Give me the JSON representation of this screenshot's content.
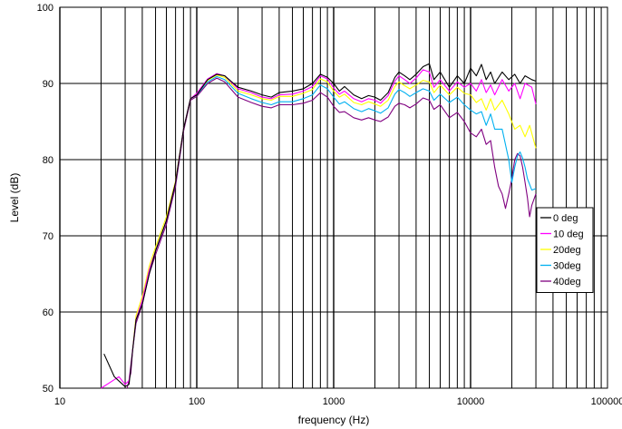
{
  "chart_data": {
    "type": "line",
    "title": "",
    "xlabel": "frequency (Hz)",
    "ylabel": "Level (dB)",
    "x_scale": "log",
    "xlim": [
      10,
      100000
    ],
    "ylim": [
      50,
      100
    ],
    "x_tick_labels": [
      "10",
      "100",
      "1000",
      "10000",
      "100000"
    ],
    "y_tick_labels": [
      "50",
      "60",
      "70",
      "80",
      "90",
      "100"
    ],
    "grid": true,
    "legend_position": "right",
    "series": [
      {
        "name": "0 deg",
        "color": "#000000",
        "points": [
          [
            21,
            54.5
          ],
          [
            25,
            51.5
          ],
          [
            30,
            50.2
          ],
          [
            32,
            50.5
          ],
          [
            34,
            55
          ],
          [
            36,
            59
          ],
          [
            40,
            61
          ],
          [
            45,
            65
          ],
          [
            50,
            68
          ],
          [
            60,
            72
          ],
          [
            70,
            77
          ],
          [
            80,
            84
          ],
          [
            90,
            88
          ],
          [
            100,
            88.5
          ],
          [
            120,
            90.5
          ],
          [
            140,
            91.2
          ],
          [
            160,
            91
          ],
          [
            200,
            89.5
          ],
          [
            250,
            89
          ],
          [
            300,
            88.5
          ],
          [
            350,
            88.2
          ],
          [
            400,
            88.8
          ],
          [
            500,
            89
          ],
          [
            600,
            89.3
          ],
          [
            700,
            90
          ],
          [
            800,
            91.2
          ],
          [
            900,
            90.8
          ],
          [
            1000,
            90
          ],
          [
            1100,
            89
          ],
          [
            1200,
            89.6
          ],
          [
            1400,
            88.5
          ],
          [
            1600,
            88
          ],
          [
            1800,
            88.4
          ],
          [
            2000,
            88.2
          ],
          [
            2200,
            87.8
          ],
          [
            2500,
            88.8
          ],
          [
            2800,
            90.8
          ],
          [
            3000,
            91.5
          ],
          [
            3300,
            91
          ],
          [
            3600,
            90.5
          ],
          [
            4000,
            91.2
          ],
          [
            4500,
            92.2
          ],
          [
            5000,
            92.6
          ],
          [
            5400,
            90.5
          ],
          [
            6000,
            91.5
          ],
          [
            7000,
            89.5
          ],
          [
            8000,
            91
          ],
          [
            9000,
            90
          ],
          [
            10000,
            92
          ],
          [
            11000,
            91
          ],
          [
            12000,
            92.5
          ],
          [
            13000,
            90.5
          ],
          [
            14000,
            91.5
          ],
          [
            15000,
            90
          ],
          [
            17000,
            91.5
          ],
          [
            19000,
            90.5
          ],
          [
            21000,
            91.2
          ],
          [
            23000,
            90
          ],
          [
            25000,
            91
          ],
          [
            28000,
            90.5
          ],
          [
            30000,
            90.3
          ]
        ]
      },
      {
        "name": "10 deg",
        "color": "#ff00ff",
        "points": [
          [
            20,
            50
          ],
          [
            27,
            51.5
          ],
          [
            30,
            50.5
          ],
          [
            32,
            51
          ],
          [
            34,
            55
          ],
          [
            36,
            59
          ],
          [
            40,
            61.5
          ],
          [
            45,
            65.5
          ],
          [
            50,
            68
          ],
          [
            60,
            72
          ],
          [
            70,
            77
          ],
          [
            80,
            84
          ],
          [
            90,
            88
          ],
          [
            100,
            88.7
          ],
          [
            120,
            90.6
          ],
          [
            140,
            91.3
          ],
          [
            160,
            91
          ],
          [
            200,
            89.3
          ],
          [
            250,
            88.8
          ],
          [
            300,
            88.2
          ],
          [
            350,
            88
          ],
          [
            400,
            88.5
          ],
          [
            500,
            88.6
          ],
          [
            600,
            89
          ],
          [
            700,
            89.6
          ],
          [
            800,
            91
          ],
          [
            900,
            90.6
          ],
          [
            1000,
            89.4
          ],
          [
            1100,
            88.6
          ],
          [
            1200,
            89
          ],
          [
            1400,
            88
          ],
          [
            1600,
            87.6
          ],
          [
            1800,
            88
          ],
          [
            2000,
            87.8
          ],
          [
            2200,
            87.4
          ],
          [
            2500,
            88.4
          ],
          [
            2800,
            90.3
          ],
          [
            3000,
            91
          ],
          [
            3300,
            90.5
          ],
          [
            3600,
            90
          ],
          [
            4000,
            90.7
          ],
          [
            4500,
            91.8
          ],
          [
            5000,
            91.5
          ],
          [
            5400,
            89.5
          ],
          [
            6000,
            90.5
          ],
          [
            7000,
            89
          ],
          [
            8000,
            90.2
          ],
          [
            9000,
            89.5
          ],
          [
            10000,
            90
          ],
          [
            11000,
            89
          ],
          [
            12000,
            90.5
          ],
          [
            13000,
            88.8
          ],
          [
            14000,
            89.8
          ],
          [
            15000,
            88.5
          ],
          [
            17000,
            90.5
          ],
          [
            19000,
            89
          ],
          [
            21000,
            90
          ],
          [
            23000,
            88
          ],
          [
            25000,
            90
          ],
          [
            28000,
            89.5
          ],
          [
            30000,
            87.3
          ]
        ]
      },
      {
        "name": "20deg",
        "color": "#ffff00",
        "points": [
          [
            34,
            55
          ],
          [
            36,
            59.5
          ],
          [
            40,
            62
          ],
          [
            45,
            66
          ],
          [
            50,
            68.5
          ],
          [
            60,
            72.5
          ],
          [
            70,
            77.2
          ],
          [
            80,
            84
          ],
          [
            90,
            88
          ],
          [
            100,
            88.6
          ],
          [
            120,
            90.4
          ],
          [
            140,
            91.1
          ],
          [
            160,
            90.8
          ],
          [
            200,
            89
          ],
          [
            250,
            88.5
          ],
          [
            300,
            88
          ],
          [
            350,
            87.8
          ],
          [
            400,
            88.3
          ],
          [
            500,
            88.3
          ],
          [
            600,
            88.7
          ],
          [
            700,
            89.2
          ],
          [
            800,
            90.6
          ],
          [
            900,
            90.2
          ],
          [
            1000,
            89
          ],
          [
            1100,
            88.2
          ],
          [
            1200,
            88.6
          ],
          [
            1400,
            87.5
          ],
          [
            1600,
            87.2
          ],
          [
            1800,
            87.6
          ],
          [
            2000,
            87.3
          ],
          [
            2200,
            87
          ],
          [
            2500,
            87.8
          ],
          [
            2800,
            89.6
          ],
          [
            3000,
            90.2
          ],
          [
            3300,
            89.7
          ],
          [
            3600,
            89.3
          ],
          [
            4000,
            89.8
          ],
          [
            4500,
            90.4
          ],
          [
            5000,
            90.2
          ],
          [
            5400,
            88.8
          ],
          [
            6000,
            89.8
          ],
          [
            7000,
            88.5
          ],
          [
            8000,
            89.5
          ],
          [
            9000,
            88.7
          ],
          [
            10000,
            88.5
          ],
          [
            11000,
            87.5
          ],
          [
            12000,
            88
          ],
          [
            13000,
            86.5
          ],
          [
            14000,
            88
          ],
          [
            15000,
            86.5
          ],
          [
            17000,
            87.8
          ],
          [
            19000,
            86
          ],
          [
            21000,
            84
          ],
          [
            23000,
            84.5
          ],
          [
            25000,
            83
          ],
          [
            27000,
            84.5
          ],
          [
            30000,
            81.5
          ]
        ]
      },
      {
        "name": "30deg",
        "color": "#00b0f0",
        "points": [
          [
            34,
            55
          ],
          [
            36,
            59
          ],
          [
            40,
            61.5
          ],
          [
            45,
            65.5
          ],
          [
            50,
            68
          ],
          [
            60,
            72
          ],
          [
            70,
            77
          ],
          [
            80,
            84
          ],
          [
            90,
            88
          ],
          [
            100,
            88.5
          ],
          [
            120,
            90.2
          ],
          [
            140,
            90.9
          ],
          [
            160,
            90.5
          ],
          [
            200,
            88.7
          ],
          [
            250,
            88
          ],
          [
            300,
            87.5
          ],
          [
            350,
            87.2
          ],
          [
            400,
            87.6
          ],
          [
            500,
            87.6
          ],
          [
            600,
            88
          ],
          [
            700,
            88.5
          ],
          [
            800,
            89.8
          ],
          [
            900,
            89.3
          ],
          [
            1000,
            88.2
          ],
          [
            1100,
            87.3
          ],
          [
            1200,
            87.6
          ],
          [
            1400,
            86.7
          ],
          [
            1600,
            86.3
          ],
          [
            1800,
            86.7
          ],
          [
            2000,
            86.4
          ],
          [
            2200,
            86.1
          ],
          [
            2500,
            86.8
          ],
          [
            2800,
            88.6
          ],
          [
            3000,
            89.2
          ],
          [
            3300,
            88.8
          ],
          [
            3600,
            88.3
          ],
          [
            4000,
            88.8
          ],
          [
            4500,
            89.3
          ],
          [
            5000,
            89
          ],
          [
            5400,
            87.8
          ],
          [
            6000,
            88.6
          ],
          [
            7000,
            87.5
          ],
          [
            8000,
            88.2
          ],
          [
            9000,
            87.2
          ],
          [
            10000,
            86.5
          ],
          [
            11000,
            86
          ],
          [
            12000,
            86.3
          ],
          [
            13000,
            84.5
          ],
          [
            14000,
            86
          ],
          [
            15000,
            84
          ],
          [
            17000,
            84
          ],
          [
            19000,
            80
          ],
          [
            20000,
            77
          ],
          [
            21000,
            79
          ],
          [
            22000,
            80.5
          ],
          [
            23000,
            81
          ],
          [
            24000,
            80.2
          ],
          [
            25000,
            79
          ],
          [
            26000,
            77.5
          ],
          [
            28000,
            76
          ],
          [
            30000,
            76.2
          ]
        ]
      },
      {
        "name": "40deg",
        "color": "#800080",
        "points": [
          [
            31,
            50
          ],
          [
            33,
            52
          ],
          [
            34,
            55
          ],
          [
            36,
            58.5
          ],
          [
            40,
            61
          ],
          [
            45,
            65
          ],
          [
            50,
            67.5
          ],
          [
            60,
            71.5
          ],
          [
            70,
            76.5
          ],
          [
            80,
            83.7
          ],
          [
            90,
            87.8
          ],
          [
            100,
            88.3
          ],
          [
            120,
            90
          ],
          [
            140,
            90.7
          ],
          [
            160,
            90.2
          ],
          [
            200,
            88.2
          ],
          [
            250,
            87.5
          ],
          [
            300,
            87
          ],
          [
            350,
            86.8
          ],
          [
            400,
            87.2
          ],
          [
            500,
            87.2
          ],
          [
            600,
            87.4
          ],
          [
            700,
            87.8
          ],
          [
            800,
            88.8
          ],
          [
            900,
            88.2
          ],
          [
            1000,
            87
          ],
          [
            1100,
            86.2
          ],
          [
            1200,
            86.3
          ],
          [
            1400,
            85.5
          ],
          [
            1600,
            85.2
          ],
          [
            1800,
            85.5
          ],
          [
            2000,
            85.2
          ],
          [
            2200,
            85
          ],
          [
            2500,
            85.6
          ],
          [
            2800,
            87
          ],
          [
            3000,
            87.4
          ],
          [
            3300,
            87.2
          ],
          [
            3600,
            86.8
          ],
          [
            4000,
            87.3
          ],
          [
            4500,
            88.1
          ],
          [
            5000,
            87.8
          ],
          [
            5400,
            86.6
          ],
          [
            6000,
            87.2
          ],
          [
            7000,
            85.5
          ],
          [
            8000,
            86.2
          ],
          [
            9000,
            85
          ],
          [
            10000,
            83.5
          ],
          [
            11000,
            83
          ],
          [
            12000,
            84
          ],
          [
            13000,
            82
          ],
          [
            14000,
            82.5
          ],
          [
            15000,
            79
          ],
          [
            16000,
            76.5
          ],
          [
            17000,
            75.5
          ],
          [
            18000,
            73.6
          ],
          [
            19000,
            75.5
          ],
          [
            20000,
            77.5
          ],
          [
            21000,
            80
          ],
          [
            22000,
            80.8
          ],
          [
            23000,
            80.5
          ],
          [
            24000,
            79
          ],
          [
            25000,
            77
          ],
          [
            26000,
            75
          ],
          [
            27000,
            72.5
          ],
          [
            28000,
            74
          ],
          [
            30000,
            75.5
          ]
        ]
      }
    ]
  }
}
